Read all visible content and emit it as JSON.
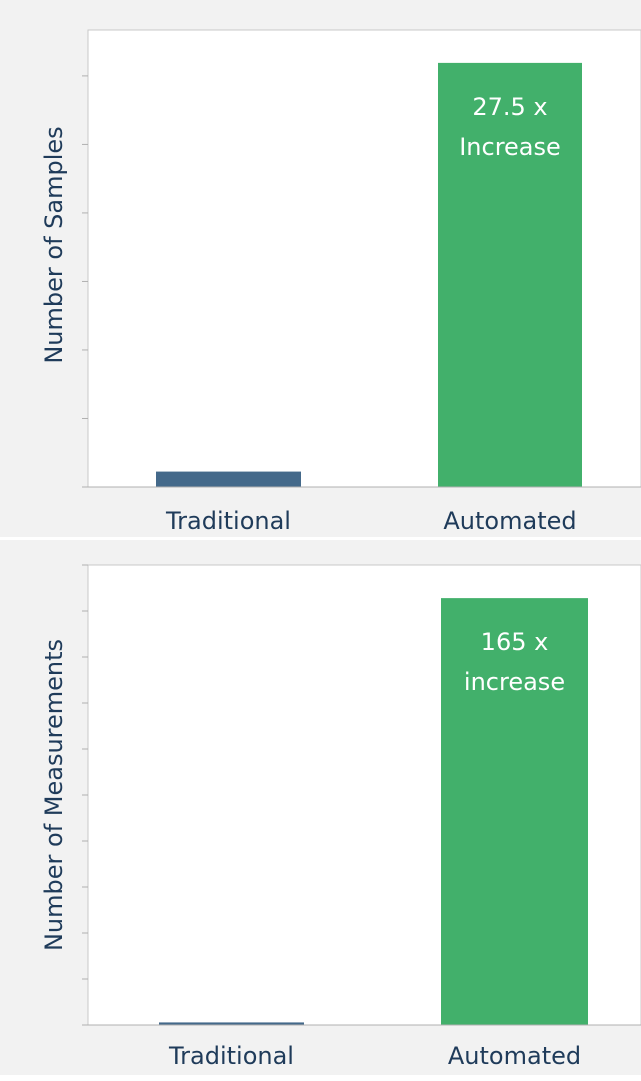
{
  "chart_data": [
    {
      "type": "bar",
      "y_label": "Number of Samples",
      "categories": [
        "Traditional",
        "Automated"
      ],
      "values": [
        0.225,
        6.19
      ],
      "colors": [
        "#44698a",
        "#42b06b"
      ],
      "ylim": [
        0,
        6.67
      ],
      "yticks": [
        0,
        1,
        2,
        3,
        4,
        5,
        6
      ],
      "annotation": [
        "27.5 x",
        "Increase"
      ]
    },
    {
      "type": "bar",
      "y_label": "Number of Measurements",
      "categories": [
        "Traditional",
        "Automated"
      ],
      "values": [
        0.056,
        9.28
      ],
      "colors": [
        "#44698a",
        "#42b06b"
      ],
      "ylim": [
        0,
        10
      ],
      "yticks": [
        0,
        1,
        2,
        3,
        4,
        5,
        6,
        7,
        8,
        9,
        10
      ],
      "annotation": [
        "165 x",
        "increase"
      ]
    }
  ]
}
